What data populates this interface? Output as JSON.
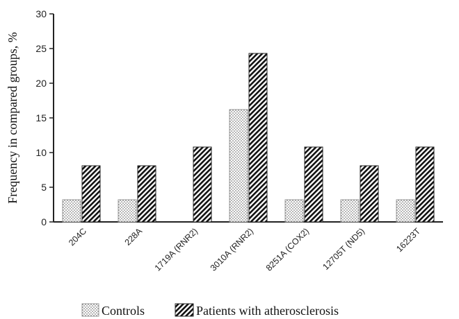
{
  "chart_data": {
    "type": "bar",
    "title": "",
    "xlabel": "",
    "ylabel": "Frequency in compared groups, %",
    "ylim": [
      0,
      30
    ],
    "yticks": [
      0,
      5,
      10,
      15,
      20,
      25,
      30
    ],
    "grid": false,
    "legend_position": "bottom",
    "categories": [
      "204C",
      "228A",
      "1719A (RNR2)",
      "3010A (RNR2)",
      "8251A (COX2)",
      "12705T (ND5)",
      "16223T"
    ],
    "series": [
      {
        "name": "Controls",
        "values": [
          3.2,
          3.2,
          0,
          16.2,
          3.2,
          3.2,
          3.2
        ],
        "pattern": "dots"
      },
      {
        "name": "Patients with atherosclerosis",
        "values": [
          8.1,
          8.1,
          10.8,
          24.3,
          10.8,
          8.1,
          10.8
        ],
        "pattern": "diagonal-hatch"
      }
    ]
  }
}
